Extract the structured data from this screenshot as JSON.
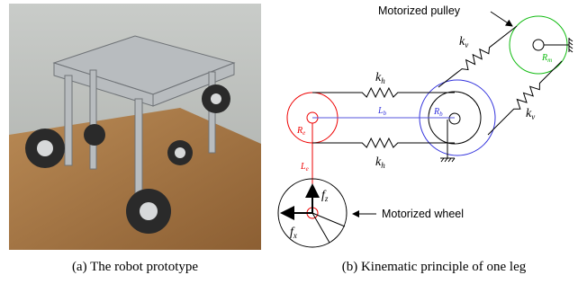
{
  "figure": {
    "subfigures": [
      {
        "caption": "(a) The robot prototype"
      },
      {
        "caption": "(b) Kinematic principle of one leg",
        "diagram": {
          "labels": [
            {
              "text": "Motorized pulley"
            },
            {
              "text": "Motorized wheel"
            },
            {
              "base": "k",
              "sub": "v"
            },
            {
              "base": "k",
              "sub": "v"
            },
            {
              "base": "k",
              "sub": "h"
            },
            {
              "base": "k",
              "sub": "h"
            },
            {
              "base": "R",
              "sub": "m"
            },
            {
              "base": "R",
              "sub": "e"
            },
            {
              "base": "L",
              "sub": "b"
            },
            {
              "base": "R",
              "sub": "b"
            },
            {
              "base": "L",
              "sub": "e"
            },
            {
              "base": "f",
              "sub": "z"
            },
            {
              "base": "f",
              "sub": "x"
            }
          ]
        }
      }
    ]
  }
}
